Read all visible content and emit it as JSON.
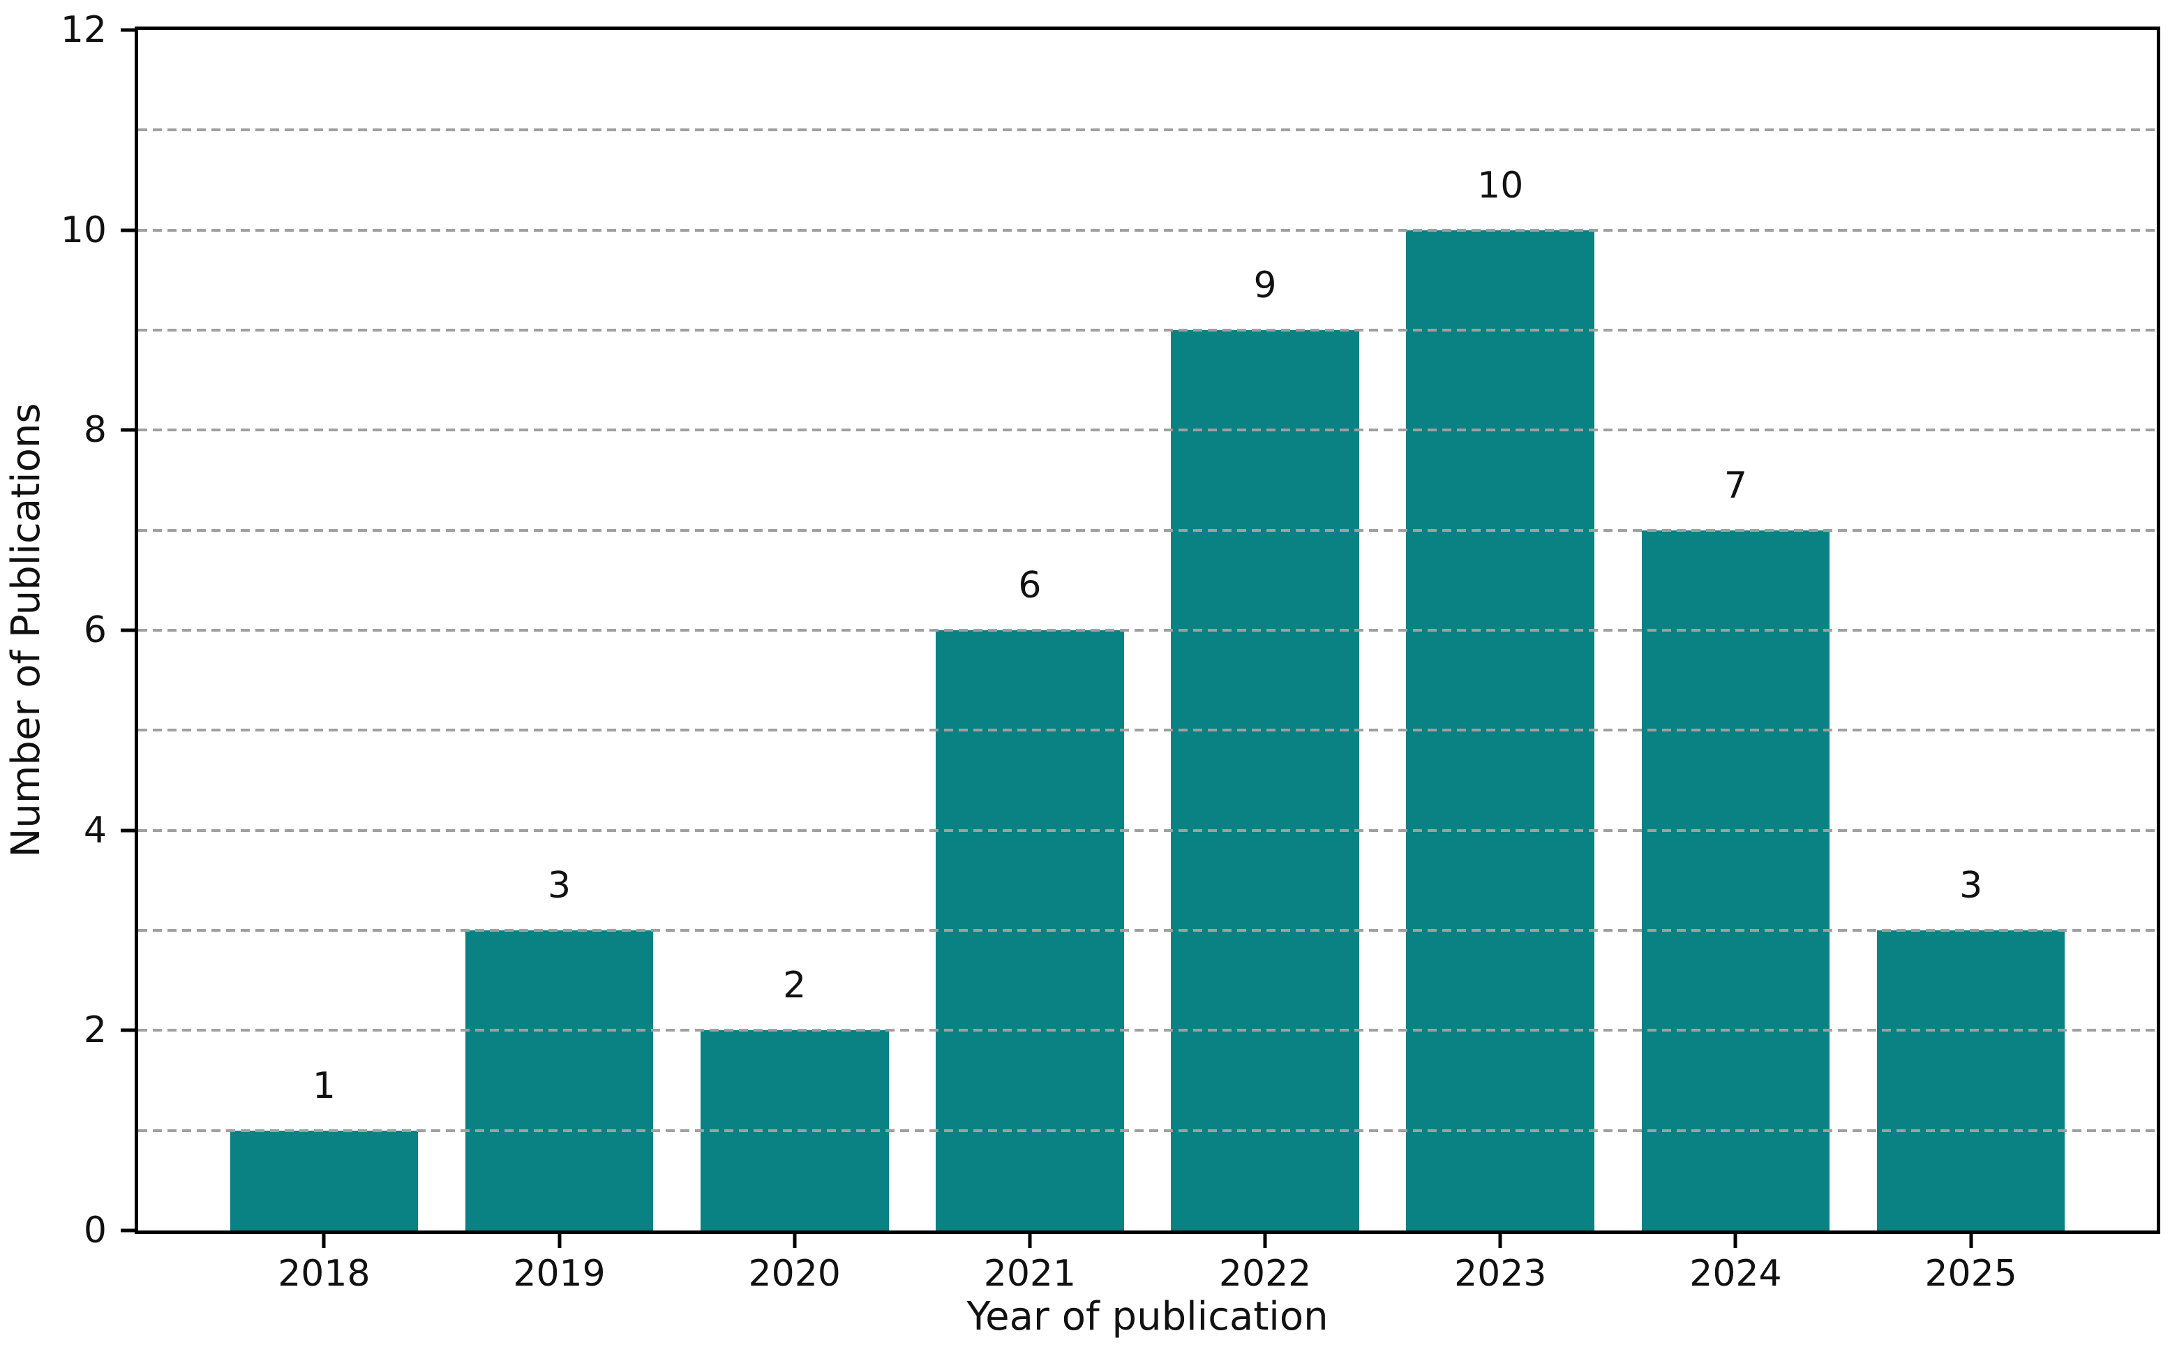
{
  "chart_data": {
    "type": "bar",
    "title": "",
    "xlabel": "Year of publication",
    "ylabel": "Number of Publications",
    "categories": [
      "2018",
      "2019",
      "2020",
      "2021",
      "2022",
      "2023",
      "2024",
      "2025"
    ],
    "values": [
      1,
      3,
      2,
      6,
      9,
      10,
      7,
      3
    ],
    "bar_value_labels": [
      "1",
      "3",
      "2",
      "6",
      "9",
      "10",
      "7",
      "3"
    ],
    "ylim": [
      0,
      12
    ],
    "ytick_values": [
      0,
      2,
      4,
      6,
      8,
      10,
      12
    ],
    "ytick_labels": [
      "0",
      "2",
      "4",
      "6",
      "8",
      "10",
      "12"
    ],
    "gridline_values": [
      1,
      2,
      3,
      4,
      5,
      6,
      7,
      8,
      9,
      10,
      11
    ],
    "grid": "horizontal dashed, drawn above bars",
    "legend_position": "none",
    "colors": {
      "bar": "#0a8284",
      "grid": "#a0a0a0",
      "axis": "#000000",
      "text": "#111111",
      "background": "#ffffff"
    },
    "layout_hints": {
      "bar_width_fraction": 0.8,
      "x_axis_units": {
        "min": -0.79,
        "max": 7.79
      }
    }
  }
}
